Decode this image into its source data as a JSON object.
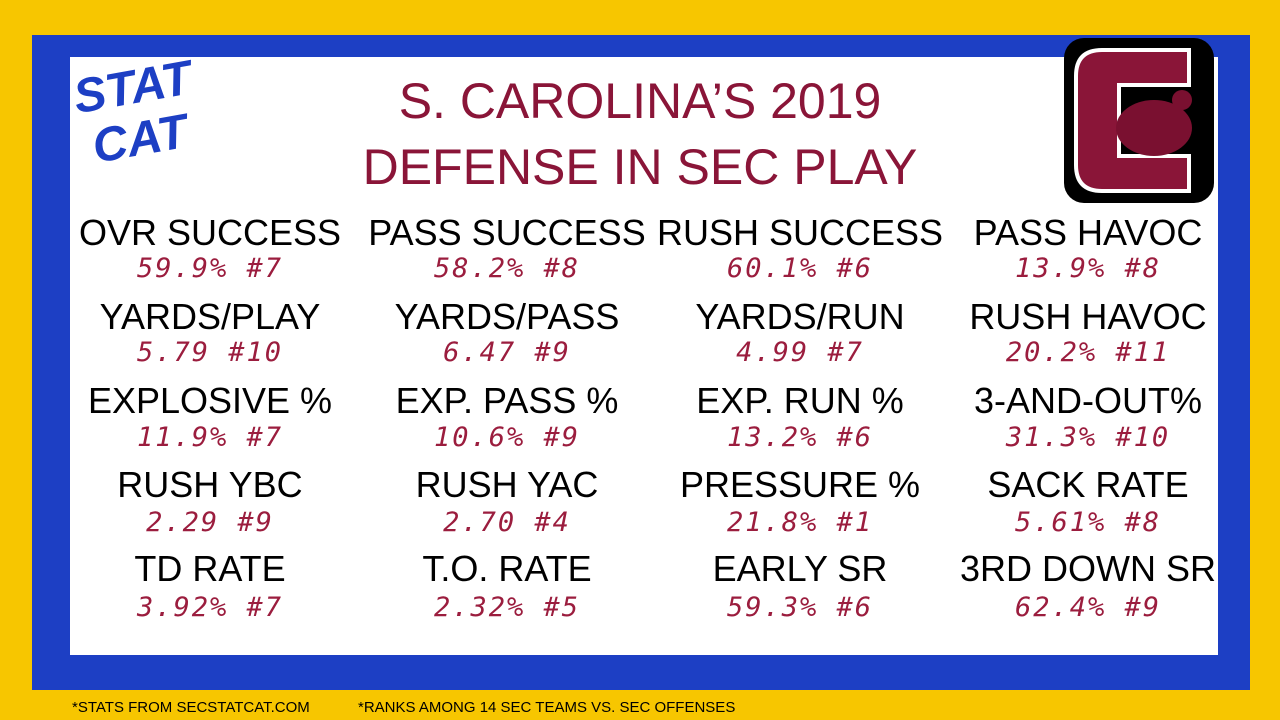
{
  "header": {
    "title_lines": [
      "S. CAROLINA’S 2019",
      "DEFENSE IN SEC PLAY"
    ],
    "logo_text": [
      "STAT",
      "CAT"
    ]
  },
  "stats": [
    [
      {
        "label": "OVR SUCCESS",
        "value": "59.9% #7"
      },
      {
        "label": "PASS SUCCESS",
        "value": "58.2% #8"
      },
      {
        "label": "RUSH SUCCESS",
        "value": "60.1% #6"
      },
      {
        "label": "PASS HAVOC",
        "value": "13.9% #8"
      }
    ],
    [
      {
        "label": "YARDS/PLAY",
        "value": "5.79 #10"
      },
      {
        "label": "YARDS/PASS",
        "value": "6.47 #9"
      },
      {
        "label": "YARDS/RUN",
        "value": "4.99 #7"
      },
      {
        "label": "RUSH HAVOC",
        "value": "20.2% #11"
      }
    ],
    [
      {
        "label": "EXPLOSIVE %",
        "value": "11.9% #7"
      },
      {
        "label": "EXP. PASS %",
        "value": "10.6% #9"
      },
      {
        "label": "EXP. RUN %",
        "value": "13.2% #6"
      },
      {
        "label": "3-AND-OUT%",
        "value": "31.3% #10"
      }
    ],
    [
      {
        "label": "RUSH YBC",
        "value": "2.29 #9"
      },
      {
        "label": "RUSH YAC",
        "value": "2.70 #4"
      },
      {
        "label": "PRESSURE %",
        "value": "21.8% #1"
      },
      {
        "label": "SACK RATE",
        "value": "5.61% #8"
      }
    ],
    [
      {
        "label": "TD RATE",
        "value": "3.92% #7"
      },
      {
        "label": "T.O. RATE",
        "value": "2.32% #5"
      },
      {
        "label": "EARLY SR",
        "value": "59.3% #6"
      },
      {
        "label": "3RD DOWN SR",
        "value": "62.4% #9"
      }
    ]
  ],
  "footer": [
    "*STATS FROM SECSTATCAT.COM",
    "*RANKS AMONG 14 SEC TEAMS VS. SEC OFFENSES"
  ]
}
